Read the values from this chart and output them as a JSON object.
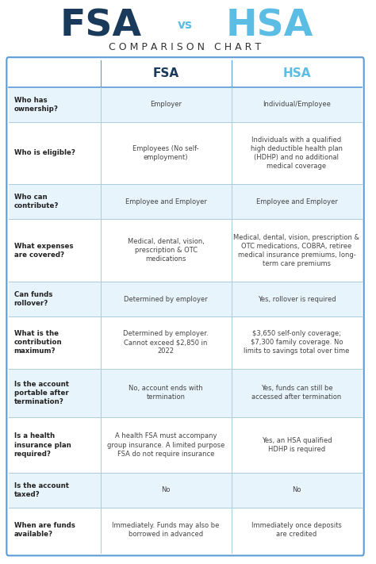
{
  "bg_color": "#ffffff",
  "header_bg": "#ffffff",
  "row_bg_light": "#e8f4fb",
  "row_bg_white": "#ffffff",
  "table_border_color": "#5b9bd5",
  "fsa_color": "#1a3a5c",
  "hsa_color": "#5bbde4",
  "vs_color": "#5bbde4",
  "row_label_color": "#222222",
  "cell_text_color": "#444444",
  "title_fsa": "FSA",
  "title_hsa": "HSA",
  "title_vs": "vs",
  "subtitle": "C O M P A R I S O N   C H A R T",
  "col_headers": [
    "FSA",
    "HSA"
  ],
  "rows": [
    {
      "label": "Who has\nownership?",
      "fsa": "Employer",
      "hsa": "Individual/Employee"
    },
    {
      "label": "Who is eligible?",
      "fsa": "Employees (No self-\nemployment)",
      "hsa": "Individuals with a qualified\nhigh deductible health plan\n(HDHP) and no additional\nmedical coverage"
    },
    {
      "label": "Who can\ncontribute?",
      "fsa": "Employee and Employer",
      "hsa": "Employee and Employer"
    },
    {
      "label": "What expenses\nare covered?",
      "fsa": "Medical, dental, vision,\nprescription & OTC\nmedications",
      "hsa": "Medical, dental, vision, prescription &\nOTC medications, COBRA, retiree\nmedical insurance premiums, long-\nterm care premiums"
    },
    {
      "label": "Can funds\nrollover?",
      "fsa": "Determined by employer",
      "hsa": "Yes, rollover is required"
    },
    {
      "label": "What is the\ncontribution\nmaximum?",
      "fsa": "Determined by employer.\nCannot exceed $2,850 in\n2022",
      "hsa": "$3,650 self-only coverage;\n$7,300 family coverage. No\nlimits to savings total over time"
    },
    {
      "label": "Is the account\nportable after\ntermination?",
      "fsa": "No, account ends with\ntermination",
      "hsa": "Yes, funds can still be\naccessed after termination"
    },
    {
      "label": "Is a health\ninsurance plan\nrequired?",
      "fsa": "A health FSA must accompany\ngroup insurance. A limited purpose\nFSA do not require insurance",
      "hsa": "Yes, an HSA qualified\nHDHP is required"
    },
    {
      "label": "Is the account\ntaxed?",
      "fsa": "No",
      "hsa": "No"
    },
    {
      "label": "When are funds\navailable?",
      "fsa": "Immediately. Funds may also be\nborrowed in advanced",
      "hsa": "Immediately once deposits\nare credited"
    }
  ],
  "row_heights_rel": [
    1.0,
    1.8,
    1.0,
    1.8,
    1.0,
    1.5,
    1.4,
    1.6,
    1.0,
    1.3
  ]
}
